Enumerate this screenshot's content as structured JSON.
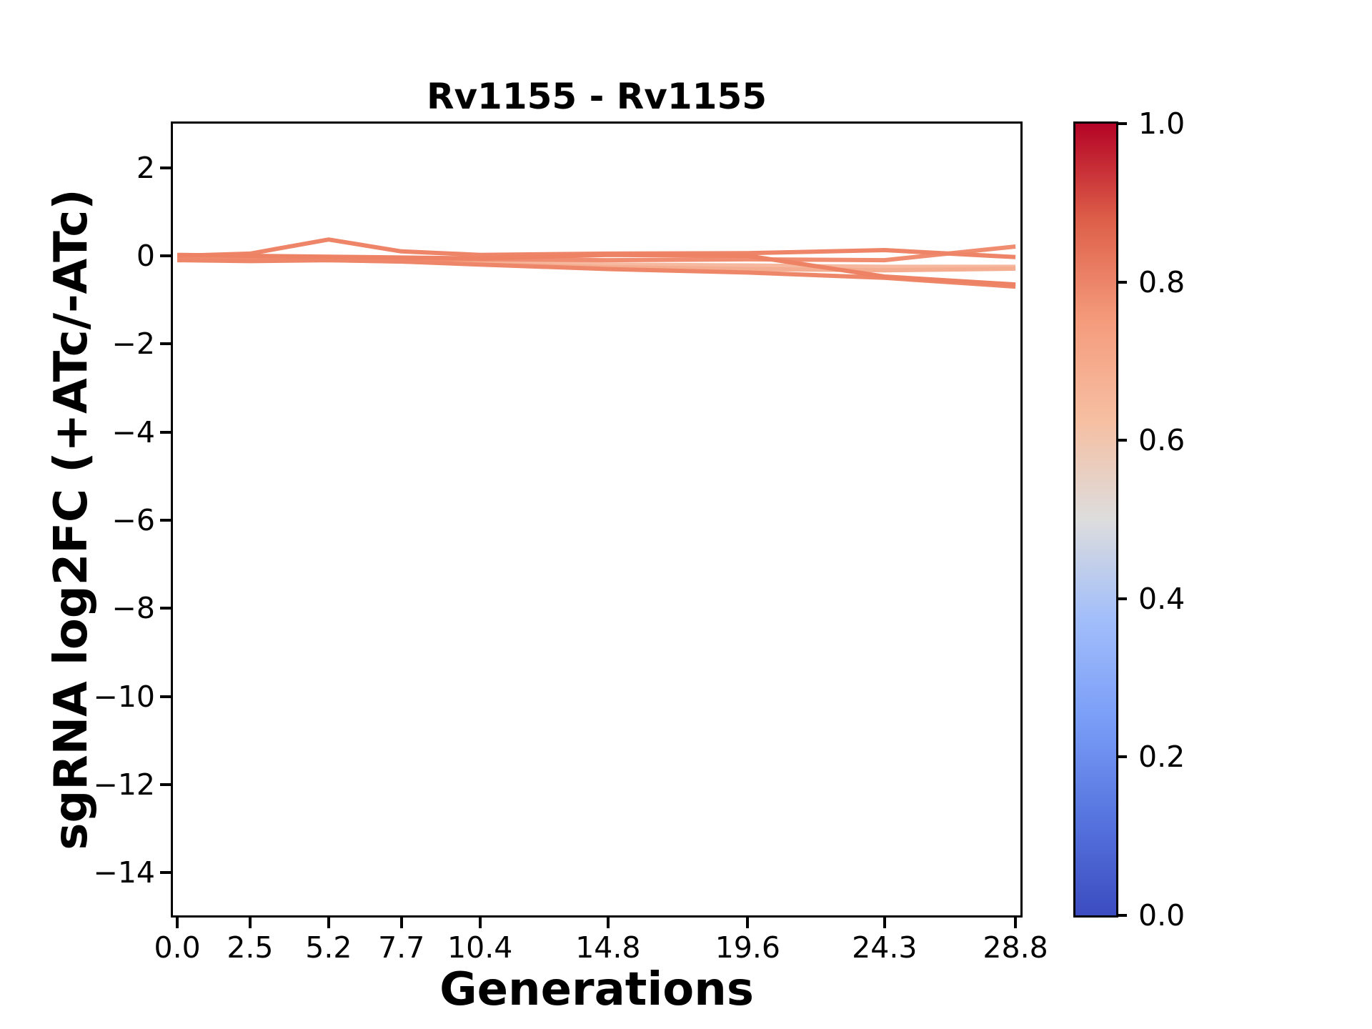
{
  "figure": {
    "background": "#ffffff"
  },
  "chart_data": {
    "type": "line",
    "title": "Rv1155 - Rv1155",
    "xlabel": "Generations",
    "ylabel": "sgRNA log2FC (+ATc/-ATc)",
    "grid": false,
    "legend": "none",
    "x": [
      0.0,
      2.5,
      5.2,
      7.7,
      10.4,
      14.8,
      19.6,
      24.3,
      28.8
    ],
    "x_tick_labels": [
      "0.0",
      "2.5",
      "5.2",
      "7.7",
      "10.4",
      "14.8",
      "19.6",
      "24.3",
      "28.8"
    ],
    "xlim": [
      -0.15,
      28.97
    ],
    "y_tick_values": [
      2,
      0,
      -2,
      -4,
      -6,
      -8,
      -10,
      -12,
      -14
    ],
    "y_tick_labels": [
      "2",
      "0",
      "−2",
      "−4",
      "−6",
      "−8",
      "−10",
      "−12",
      "−14"
    ],
    "ylim": [
      -14.97,
      3.0
    ],
    "series": [
      {
        "name": "sgrna-line-1",
        "color": "#f6b89e",
        "colormap_value": 0.63,
        "values": [
          -0.05,
          -0.04,
          -0.07,
          -0.1,
          -0.14,
          -0.2,
          -0.22,
          -0.25,
          -0.25
        ]
      },
      {
        "name": "sgrna-line-2",
        "color": "#f4ad90",
        "colormap_value": 0.66,
        "values": [
          -0.08,
          -0.07,
          -0.1,
          -0.13,
          -0.18,
          -0.26,
          -0.3,
          -0.33,
          -0.29
        ]
      },
      {
        "name": "sgrna-line-3",
        "color": "#f08d70",
        "colormap_value": 0.76,
        "values": [
          -0.03,
          -0.02,
          -0.05,
          -0.06,
          -0.08,
          -0.1,
          -0.08,
          -0.1,
          0.21
        ]
      },
      {
        "name": "sgrna-line-4",
        "color": "#ee8568",
        "colormap_value": 0.78,
        "values": [
          0.0,
          0.05,
          0.37,
          0.1,
          0.02,
          0.05,
          0.06,
          0.13,
          -0.03
        ]
      },
      {
        "name": "sgrna-line-5",
        "color": "#ee8769",
        "colormap_value": 0.77,
        "values": [
          -0.1,
          -0.12,
          -0.1,
          -0.13,
          -0.2,
          -0.3,
          -0.38,
          -0.5,
          -0.7
        ]
      },
      {
        "name": "sgrna-line-6",
        "color": "#ed8265",
        "colormap_value": 0.79,
        "values": [
          0.02,
          0.0,
          -0.02,
          -0.04,
          -0.06,
          0.02,
          0.0,
          -0.47,
          -0.65
        ]
      }
    ],
    "colorbar": {
      "cmap": "coolwarm",
      "range": [
        0.0,
        1.0
      ],
      "tick_values": [
        1.0,
        0.8,
        0.6,
        0.4,
        0.2,
        0.0
      ],
      "tick_labels": [
        "1.0",
        "0.8",
        "0.6",
        "0.4",
        "0.2",
        "0.0"
      ],
      "gradient_stops_bottom_to_top": [
        "#3b4cc0",
        "#5775df",
        "#7b9ef8",
        "#a2befa",
        "#dddddd",
        "#f6bfa2",
        "#f59c7d",
        "#de614a",
        "#b40426"
      ]
    }
  }
}
